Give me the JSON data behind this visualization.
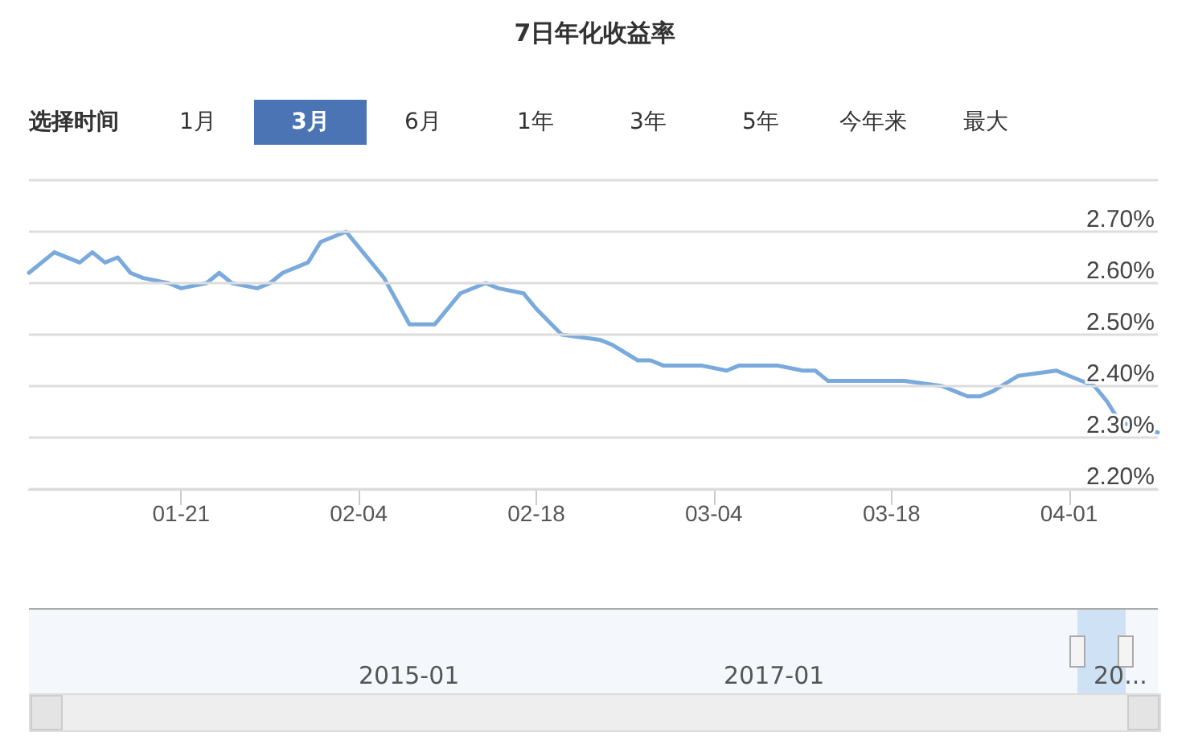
{
  "chart_data": {
    "type": "line",
    "title": "7日年化收益率",
    "annotations": [
      "选择时间",
      "1月",
      "3月",
      "6月",
      "1年",
      "3年",
      "5年",
      "今年来",
      "最大",
      "2015-01",
      "2017-01",
      "20..."
    ],
    "x": [
      "--01-09",
      "--01-11",
      "--01-13",
      "--01-14",
      "--01-15",
      "--01-16",
      "--01-17",
      "--01-18",
      "--01-20",
      "--01-21",
      "--01-23",
      "--01-24",
      "--01-25",
      "--01-27",
      "--01-28",
      "--01-29",
      "--01-31",
      "--02-01",
      "--02-03",
      "--02-05",
      "--02-06",
      "--02-08",
      "--02-10",
      "--02-12",
      "--02-14",
      "--02-15",
      "--02-17",
      "--02-18",
      "--02-20",
      "--02-23",
      "--02-24",
      "--02-26",
      "--02-27",
      "--02-28",
      "--03-03",
      "--03-05",
      "--03-06",
      "--03-09",
      "--03-11",
      "--03-12",
      "--03-13",
      "--03-16",
      "--03-17",
      "--03-19",
      "--03-22",
      "--03-23",
      "--03-24",
      "--03-25",
      "--03-26",
      "--03-28",
      "--03-31",
      "--04-01",
      "--04-03",
      "--04-04",
      "--04-05",
      "--04-08"
    ],
    "series": [
      {
        "color": "#7aaadc",
        "values": [
          2.62,
          2.66,
          2.64,
          2.66,
          2.64,
          2.65,
          2.62,
          2.61,
          2.6,
          2.59,
          2.6,
          2.62,
          2.6,
          2.59,
          2.6,
          2.62,
          2.64,
          2.68,
          2.7,
          2.64,
          2.61,
          2.52,
          2.52,
          2.58,
          2.6,
          2.59,
          2.58,
          2.55,
          2.5,
          2.49,
          2.48,
          2.45,
          2.45,
          2.44,
          2.44,
          2.43,
          2.44,
          2.44,
          2.43,
          2.43,
          2.41,
          2.41,
          2.41,
          2.41,
          2.4,
          2.39,
          2.38,
          2.38,
          2.39,
          2.42,
          2.43,
          2.42,
          2.4,
          2.37,
          2.33,
          2.31
        ]
      }
    ],
    "xlim": [
      "--01-09",
      "--04-08"
    ],
    "xticks": [
      {
        "value": "--01-21",
        "label": "01-21"
      },
      {
        "value": "--02-04",
        "label": "02-04"
      },
      {
        "value": "--02-18",
        "label": "02-18"
      },
      {
        "value": "--03-04",
        "label": "03-04"
      },
      {
        "value": "--03-18",
        "label": "03-18"
      },
      {
        "value": "--04-01",
        "label": "04-01"
      }
    ],
    "ylim": [
      2.2,
      2.8
    ],
    "yticks": [
      {
        "value": 2.2,
        "label": "2.20%"
      },
      {
        "value": 2.3,
        "label": "2.30%"
      },
      {
        "value": 2.4,
        "label": "2.40%"
      },
      {
        "value": 2.5,
        "label": "2.50%"
      },
      {
        "value": 2.6,
        "label": "2.60%"
      },
      {
        "value": 2.7,
        "label": "2.70%"
      },
      {
        "value": 2.8,
        "label": null
      }
    ],
    "grid": "y",
    "marker": "none",
    "line_style": "solid"
  }
}
